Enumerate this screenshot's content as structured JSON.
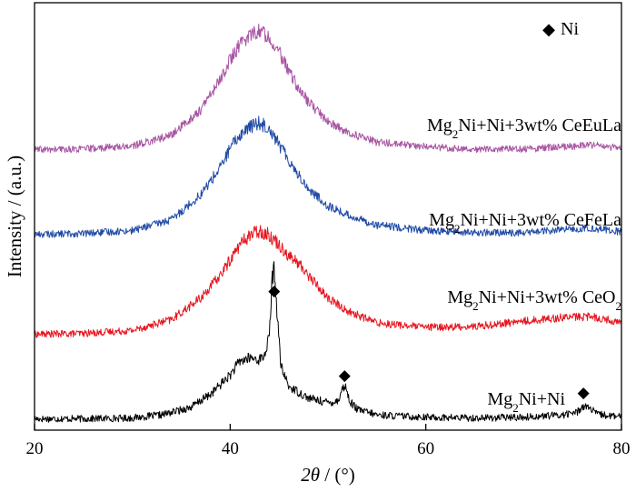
{
  "chart_data": {
    "type": "line",
    "title": "",
    "xlabel": {
      "italic": "2θ",
      "rest": " / (°)"
    },
    "ylabel": "Intensity / (a.u.)",
    "xlim": [
      20,
      80
    ],
    "x_ticks": [
      20,
      40,
      60,
      80
    ],
    "y_ticks_shown": false,
    "legend": {
      "marker": "◆",
      "label": "Ni",
      "position": "top-right"
    },
    "series": [
      {
        "label_parts": [
          [
            "Mg",
            ""
          ],
          [
            "2",
            "sub"
          ],
          [
            "Ni+Ni",
            ""
          ]
        ],
        "color": "#000000",
        "offset": 0,
        "x": [
          20,
          25,
          30,
          33,
          36,
          38,
          40,
          41,
          42,
          43,
          43.5,
          44,
          44.3,
          44.5,
          44.8,
          45.2,
          46,
          48,
          50,
          51,
          51.5,
          51.8,
          52.2,
          53,
          55,
          60,
          65,
          70,
          74,
          75.5,
          76.1,
          76.6,
          77.5,
          80
        ],
        "y": [
          0.3,
          0.3,
          0.4,
          0.8,
          1.8,
          3.5,
          6.0,
          7.8,
          8.2,
          8.0,
          8.5,
          11.0,
          18.5,
          20.0,
          14.0,
          7.0,
          4.5,
          3.0,
          2.4,
          2.6,
          4.3,
          4.5,
          2.6,
          1.5,
          0.8,
          0.5,
          0.4,
          0.5,
          0.8,
          1.2,
          2.0,
          1.8,
          0.9,
          0.5
        ],
        "markers_x": [
          44.5,
          51.7,
          76.3
        ]
      },
      {
        "label_parts": [
          [
            "Mg",
            ""
          ],
          [
            "2",
            "sub"
          ],
          [
            "Ni+Ni+3wt% CeO",
            ""
          ],
          [
            "2",
            "sub"
          ]
        ],
        "color": "#e8141e",
        "offset": 11,
        "x": [
          20,
          25,
          30,
          34,
          37,
          39,
          40,
          41,
          42,
          43,
          44,
          45,
          46,
          47,
          48,
          50,
          52,
          55,
          60,
          65,
          70,
          74,
          77,
          80
        ],
        "y": [
          0.3,
          0.4,
          0.8,
          2.2,
          5.0,
          8.0,
          10.0,
          12.0,
          13.2,
          13.8,
          13.2,
          12.0,
          10.5,
          9.5,
          8.0,
          5.0,
          3.3,
          1.8,
          1.2,
          1.3,
          2.0,
          2.5,
          2.6,
          1.8
        ],
        "markers_x": []
      },
      {
        "label_parts": [
          [
            "Mg",
            ""
          ],
          [
            "2",
            "sub"
          ],
          [
            "Ni+Ni+3wt% CeFeLa",
            ""
          ]
        ],
        "color": "#1f4aa6",
        "offset": 24,
        "x": [
          20,
          25,
          30,
          34,
          37,
          39,
          40,
          41,
          42,
          43,
          44,
          45,
          46,
          47,
          48,
          50,
          52,
          55,
          60,
          65,
          70,
          74,
          77,
          80
        ],
        "y": [
          0.3,
          0.4,
          0.8,
          2.2,
          5.5,
          9.0,
          11.5,
          13.2,
          14.3,
          14.8,
          14.2,
          12.0,
          10.0,
          8.0,
          6.2,
          4.0,
          2.8,
          1.5,
          0.8,
          0.5,
          0.5,
          0.9,
          1.1,
          0.6
        ],
        "markers_x": []
      },
      {
        "label_parts": [
          [
            "Mg",
            ""
          ],
          [
            "2",
            "sub"
          ],
          [
            "Ni+Ni+3wt% CeEuLa",
            ""
          ]
        ],
        "color": "#a855a2",
        "offset": 35,
        "x": [
          20,
          25,
          30,
          34,
          37,
          39,
          40,
          41,
          42,
          43,
          44,
          45,
          46,
          47,
          48,
          50,
          52,
          55,
          60,
          65,
          70,
          74,
          77,
          80
        ],
        "y": [
          0.3,
          0.4,
          0.8,
          2.2,
          5.5,
          9.5,
          12.0,
          14.0,
          15.3,
          15.8,
          15.0,
          13.0,
          10.5,
          8.3,
          6.5,
          4.0,
          2.5,
          1.3,
          0.7,
          0.4,
          0.4,
          0.7,
          0.9,
          0.5
        ],
        "markers_x": []
      }
    ]
  }
}
